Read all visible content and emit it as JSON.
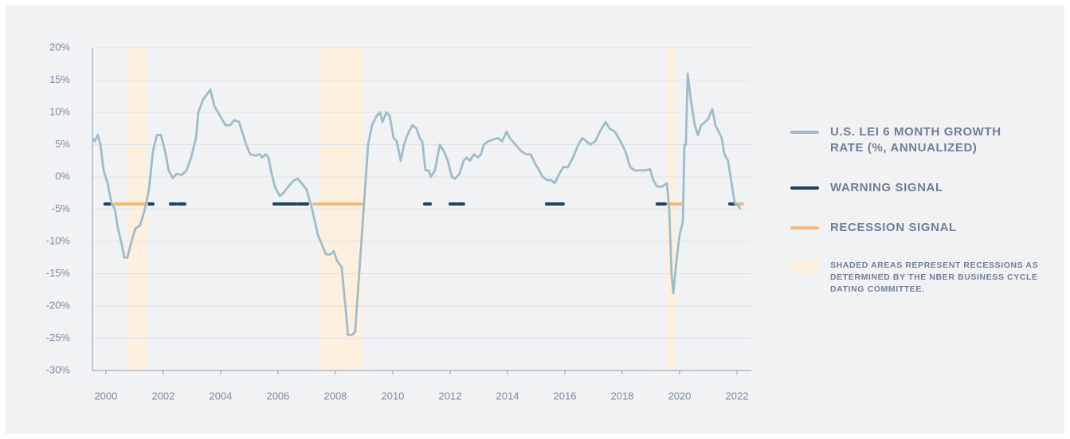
{
  "chart_data": {
    "type": "line",
    "x": [
      1999.53,
      1999.61,
      1999.72,
      1999.81,
      1999.92,
      2000.06,
      2000.19,
      2000.31,
      2000.42,
      2000.53,
      2000.64,
      2000.75,
      2000.89,
      2001.03,
      2001.19,
      2001.36,
      2001.5,
      2001.64,
      2001.78,
      2001.92,
      2002.06,
      2002.19,
      2002.33,
      2002.47,
      2002.64,
      2002.81,
      2002.97,
      2003.14,
      2003.22,
      2003.39,
      2003.64,
      2003.78,
      2003.97,
      2004.17,
      2004.33,
      2004.47,
      2004.64,
      2004.75,
      2004.89,
      2005.03,
      2005.22,
      2005.36,
      2005.44,
      2005.56,
      2005.67,
      2005.75,
      2005.89,
      2006.06,
      2006.19,
      2006.36,
      2006.56,
      2006.69,
      2006.83,
      2007.0,
      2007.19,
      2007.39,
      2007.67,
      2007.83,
      2007.94,
      2008.06,
      2008.22,
      2008.39,
      2008.44,
      2008.58,
      2008.69,
      2008.83,
      2009.0,
      2009.14,
      2009.28,
      2009.44,
      2009.56,
      2009.64,
      2009.78,
      2009.89,
      2010.03,
      2010.14,
      2010.28,
      2010.39,
      2010.56,
      2010.69,
      2010.83,
      2010.94,
      2011.03,
      2011.14,
      2011.25,
      2011.33,
      2011.47,
      2011.64,
      2011.78,
      2011.92,
      2012.06,
      2012.17,
      2012.33,
      2012.47,
      2012.58,
      2012.69,
      2012.83,
      2012.97,
      2013.08,
      2013.17,
      2013.33,
      2013.5,
      2013.67,
      2013.81,
      2013.97,
      2014.08,
      2014.28,
      2014.47,
      2014.64,
      2014.81,
      2014.97,
      2015.11,
      2015.22,
      2015.39,
      2015.53,
      2015.64,
      2015.81,
      2015.94,
      2016.11,
      2016.28,
      2016.47,
      2016.61,
      2016.75,
      2016.89,
      2017.06,
      2017.22,
      2017.42,
      2017.56,
      2017.75,
      2017.94,
      2018.11,
      2018.28,
      2018.44,
      2018.61,
      2018.81,
      2018.97,
      2019.08,
      2019.22,
      2019.39,
      2019.56,
      2019.64,
      2019.72,
      2019.78,
      2019.89,
      2020.0,
      2020.11,
      2020.17,
      2020.22,
      2020.28,
      2020.39,
      2020.53,
      2020.64,
      2020.75,
      2020.89,
      2021.0,
      2021.14,
      2021.25,
      2021.36,
      2021.47,
      2021.56,
      2021.69,
      2021.81,
      2021.92,
      2022.06,
      2022.11
    ],
    "series": [
      {
        "name": "U.S. LEI 6 MONTH GROWTH RATE (%, ANNUALIZED)",
        "color": "#9dbdc9",
        "values": [
          6,
          5.5,
          6.5,
          5,
          1,
          -1,
          -4,
          -5,
          -8,
          -10,
          -12.5,
          -12.5,
          -10,
          -8,
          -7.5,
          -5,
          -2,
          4,
          6.5,
          6.5,
          4,
          1,
          -0.2,
          0.5,
          0.3,
          1,
          3,
          6,
          10,
          12,
          13.5,
          11,
          9.5,
          8,
          8,
          8.8,
          8.5,
          7,
          5,
          3.5,
          3.3,
          3.5,
          3,
          3.5,
          3,
          1,
          -1.5,
          -3,
          -2.5,
          -1.5,
          -0.5,
          -0.3,
          -1,
          -2,
          -5,
          -9,
          -12,
          -12,
          -11.5,
          -13,
          -14,
          -22,
          -24.5,
          -24.5,
          -24,
          -15,
          -4,
          5,
          8,
          9.5,
          10,
          8.5,
          10,
          9.5,
          6,
          5.5,
          2.5,
          5,
          7,
          8,
          7.5,
          6,
          5.5,
          1,
          1,
          0,
          1,
          5,
          4,
          2.5,
          0,
          -0.3,
          0.5,
          2.5,
          3,
          2.5,
          3.5,
          3,
          3.5,
          5,
          5.5,
          5.8,
          6,
          5.5,
          7,
          6,
          5,
          4,
          3.5,
          3.5,
          2,
          1,
          0,
          -0.5,
          -0.5,
          -1,
          0.5,
          1.5,
          1.5,
          3,
          5,
          6,
          5.5,
          5,
          5.5,
          7,
          8.5,
          7.5,
          7,
          5.5,
          4,
          1.5,
          1,
          1,
          1,
          1.2,
          -0.5,
          -1.5,
          -1.5,
          -1,
          -5,
          -15,
          -18,
          -13,
          -9,
          -7,
          5,
          5,
          16,
          12,
          8,
          6.5,
          8,
          8.5,
          9,
          10.5,
          8,
          7,
          6,
          3.5,
          2.5,
          -1,
          -4,
          -4.5,
          -5
        ]
      }
    ],
    "signals": [
      {
        "name": "WARNING SIGNAL",
        "color": "#1c4567",
        "level": -4.2,
        "periods": [
          [
            1999.97,
            2000.14
          ],
          [
            2001.44,
            2001.64
          ],
          [
            2002.25,
            2002.44
          ],
          [
            2002.53,
            2002.75
          ],
          [
            2005.86,
            2006.14
          ],
          [
            2006.19,
            2006.61
          ],
          [
            2006.69,
            2007.03
          ],
          [
            2011.11,
            2011.31
          ],
          [
            2012.0,
            2012.17
          ],
          [
            2012.25,
            2012.47
          ],
          [
            2015.36,
            2015.94
          ],
          [
            2019.22,
            2019.5
          ],
          [
            2021.75,
            2021.97
          ]
        ]
      },
      {
        "name": "RECESSION SIGNAL",
        "color": "#f4b97c",
        "level": -4.2,
        "periods": [
          [
            2000.31,
            2001.42
          ],
          [
            2007.25,
            2008.92
          ],
          [
            2019.61,
            2020.08
          ],
          [
            2021.97,
            2022.19
          ]
        ]
      }
    ],
    "recessions": {
      "label": "SHADED AREAS REPRESENT RECESSIONS AS DETERMINED BY THE NBER BUSINESS CYCLE DATING COMMITTEE.",
      "color": "#fdf0df",
      "periods": [
        [
          2000.72,
          2001.42
        ],
        [
          2007.47,
          2008.94
        ],
        [
          2019.53,
          2019.83
        ]
      ]
    },
    "xlim": [
      1999.53,
      2022.5
    ],
    "xticks": [
      2000,
      2002,
      2004,
      2006,
      2008,
      2010,
      2012,
      2014,
      2016,
      2018,
      2020,
      2022
    ],
    "ylim": [
      -30,
      20
    ],
    "yticks": [
      {
        "value": 20,
        "label": "20%"
      },
      {
        "value": 15,
        "label": "15%"
      },
      {
        "value": 10,
        "label": "10%"
      },
      {
        "value": 5,
        "label": "5%"
      },
      {
        "value": 0,
        "label": "0%"
      },
      {
        "value": -5,
        "label": "-5%"
      },
      {
        "value": -10,
        "label": "-10%"
      },
      {
        "value": -15,
        "label": "-15%"
      },
      {
        "value": -20,
        "label": "-20%"
      },
      {
        "value": -25,
        "label": "-25%"
      },
      {
        "value": -30,
        "label": "-30%"
      }
    ],
    "grid": true
  }
}
